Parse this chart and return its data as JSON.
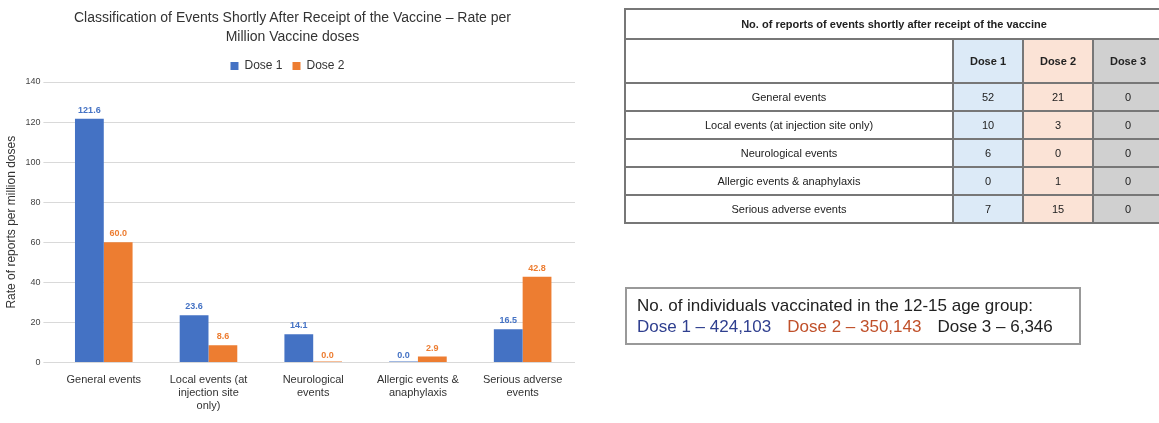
{
  "chart_data": [
    {
      "type": "bar",
      "title": "Classification of Events Shortly After Receipt of the Vaccine – Rate per Million Vaccine doses",
      "ylabel": "Rate of reports per million doses",
      "categories": [
        "General events",
        "Local events (at injection site only)",
        "Neurological events",
        "Allergic events & anaphylaxis",
        "Serious adverse events"
      ],
      "series": [
        {
          "name": "Dose 1",
          "color": "#4472c4",
          "values": [
            121.6,
            23.6,
            14.1,
            0.0,
            16.5
          ],
          "value_labels": [
            "121.6",
            "23.6",
            "14.1",
            "0.0",
            "16.5"
          ]
        },
        {
          "name": "Dose 2",
          "color": "#ed7d31",
          "values": [
            60.0,
            8.6,
            0.0,
            2.9,
            42.8
          ],
          "value_labels": [
            "60.0",
            "8.6",
            "0.0",
            "2.9",
            "42.8"
          ]
        }
      ],
      "ylim": [
        0,
        140
      ],
      "yticks": [
        0,
        20,
        40,
        60,
        80,
        100,
        120,
        140
      ],
      "grid": "y",
      "legend": "top"
    },
    {
      "type": "other",
      "title": "No. of reports of events shortly after receipt of the vaccine",
      "categories": [
        "Dose 1",
        "Dose 2",
        "Dose 3"
      ],
      "y_categories": [
        "General events",
        "Local events (at injection site only)",
        "Neurological events",
        "Allergic events & anaphylaxis",
        "Serious adverse events"
      ],
      "cell_labels": [
        [
          "52",
          "21",
          "0"
        ],
        [
          "10",
          "3",
          "0"
        ],
        [
          "6",
          "0",
          "0"
        ],
        [
          "0",
          "1",
          "0"
        ],
        [
          "7",
          "15",
          "0"
        ]
      ]
    },
    {
      "type": "other",
      "annotations": [
        "No. of individuals vaccinated in the 12-15 age group:",
        "Dose 1 – 424,103",
        "Dose 2 – 350,143",
        "Dose 3 – 6,346"
      ]
    }
  ]
}
